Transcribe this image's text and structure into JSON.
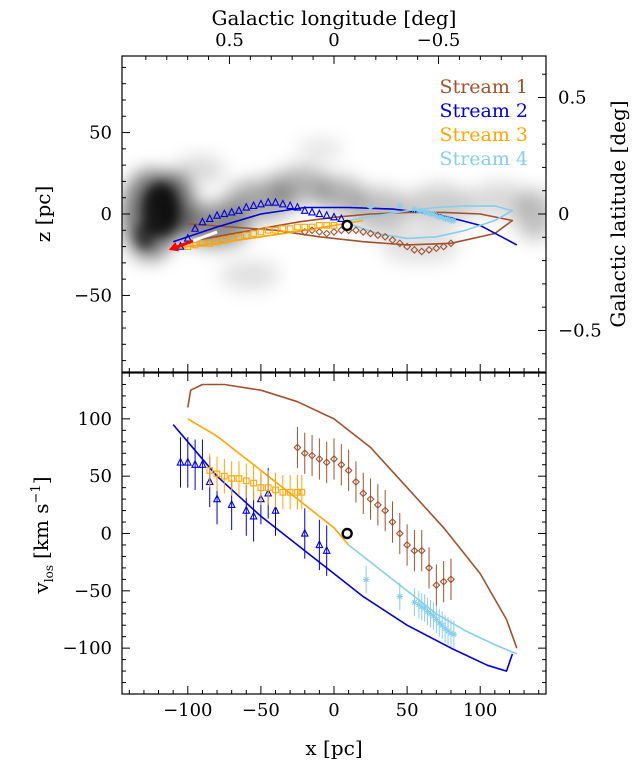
{
  "chart_data": [
    {
      "panel": "top",
      "type": "scatter",
      "xlabel": "x [pc]",
      "ylabel": "z [pc]",
      "top_xlabel": "Galactic longitude [deg]",
      "right_ylabel": "Galactic latitude [deg]",
      "xlim": [
        -145,
        145
      ],
      "ylim": [
        -97,
        97
      ],
      "x_ticks": [
        -100,
        -50,
        0,
        50,
        100
      ],
      "y_ticks": [
        -50,
        0,
        50
      ],
      "top_tick_labels": [
        "0.5",
        "0",
        "−0.5"
      ],
      "top_tick_values": [
        0.5,
        0.0,
        -0.5
      ],
      "right_tick_labels": [
        "0.5",
        "0",
        "−0.5"
      ],
      "right_tick_values": [
        0.5,
        0.0,
        -0.5
      ],
      "background": "grayscale gas density map",
      "legend": [
        {
          "label": "Stream 1",
          "color": "#a0522d"
        },
        {
          "label": "Stream 2",
          "color": "#0000dd"
        },
        {
          "label": "Stream 3",
          "color": "#ffa500"
        },
        {
          "label": "Stream 4",
          "color": "#87ceeb"
        }
      ],
      "legend_position": "top-right",
      "sun_marker": {
        "x": 9,
        "z": -7
      },
      "arrow": {
        "from": [
          -80,
          -11
        ],
        "to": [
          -113,
          -22
        ],
        "colors": [
          "#ffffff",
          "#ff0000"
        ]
      },
      "orbits": [
        {
          "name": "Stream 1",
          "color": "#a0522d",
          "x": [
            -100,
            -75,
            -50,
            -25,
            0,
            25,
            50,
            75,
            100,
            122,
            110,
            80,
            50,
            20,
            -10,
            -40,
            -70,
            -100
          ],
          "z": [
            -17,
            -13,
            -9,
            -5,
            -2,
            0,
            1,
            1,
            0,
            -4,
            -12,
            -18,
            -19,
            -17,
            -14,
            -10,
            -8,
            -6
          ]
        },
        {
          "name": "Stream 2",
          "color": "#0000dd",
          "x": [
            -110,
            -80,
            -50,
            -20,
            10,
            40,
            70,
            100,
            125
          ],
          "z": [
            -17,
            -8,
            0,
            4,
            4,
            3,
            0,
            -7,
            -19
          ]
        },
        {
          "name": "Stream 3",
          "color": "#ffa500",
          "x": [
            -110,
            -80,
            -50,
            -20,
            0,
            20
          ],
          "z": [
            -21,
            -18,
            -14,
            -10,
            -7,
            -4
          ]
        },
        {
          "name": "Stream 4",
          "color": "#87ceeb",
          "x": [
            10,
            30,
            50,
            70,
            90,
            110,
            122,
            110,
            90,
            70,
            50,
            30,
            10
          ],
          "z": [
            -4,
            -1,
            2,
            4,
            5,
            5,
            2,
            -4,
            -10,
            -14,
            -15,
            -12,
            -6
          ]
        }
      ],
      "series": [
        {
          "name": "Stream 1",
          "marker": "diamond",
          "color": "#a0522d",
          "x": [
            -20,
            -15,
            -10,
            -5,
            0,
            5,
            10,
            15,
            20,
            25,
            30,
            35,
            40,
            45,
            50,
            55,
            60,
            65,
            70,
            75,
            80
          ],
          "z": [
            -11,
            -10,
            -11,
            -12,
            -11,
            -10,
            -10,
            -10,
            -11,
            -12,
            -13,
            -14,
            -16,
            -18,
            -20,
            -22,
            -23,
            -22,
            -21,
            -20,
            -18
          ]
        },
        {
          "name": "Stream 2",
          "marker": "triangle",
          "color": "#0000dd",
          "x": [
            -105,
            -100,
            -95,
            -90,
            -85,
            -80,
            -75,
            -70,
            -65,
            -60,
            -55,
            -50,
            -45,
            -40,
            -35,
            -30,
            -25,
            -20,
            -15,
            -10,
            -5,
            0,
            5
          ],
          "z": [
            -20,
            -15,
            -9,
            -5,
            -3,
            -1,
            0,
            1,
            2,
            4,
            5,
            6,
            7,
            7,
            6,
            5,
            4,
            2,
            1,
            0,
            -1,
            -2,
            -3
          ]
        },
        {
          "name": "Stream 3",
          "marker": "square",
          "color": "#ffa500",
          "x": [
            -100,
            -95,
            -90,
            -85,
            -80,
            -75,
            -70,
            -65,
            -60,
            -55,
            -50,
            -45,
            -40,
            -35,
            -30,
            -25,
            -20,
            -15,
            -10,
            -5,
            0
          ],
          "z": [
            -20,
            -19,
            -18,
            -18,
            -17,
            -16,
            -15,
            -14,
            -13,
            -12,
            -11,
            -10,
            -10,
            -9,
            -9,
            -8,
            -8,
            -8,
            -7,
            -7,
            -7
          ]
        },
        {
          "name": "Stream 4",
          "marker": "asterisk",
          "color": "#87ceeb",
          "x": [
            25,
            45,
            55,
            58,
            60,
            62,
            64,
            66,
            68,
            70,
            72,
            74,
            76,
            78,
            80,
            82
          ],
          "z": [
            4,
            5,
            3,
            2,
            2,
            1,
            1,
            0,
            0,
            -1,
            -2,
            -2,
            -3,
            -3,
            -4,
            -4
          ]
        }
      ]
    },
    {
      "panel": "bottom",
      "type": "scatter",
      "xlabel": "x [pc]",
      "ylabel": "v_los [km s^-1]",
      "ylabel_main": "v",
      "ylabel_sub": "los",
      "ylabel_unit": "[km s",
      "ylabel_exp": "−1",
      "ylabel_close": "]",
      "xlim": [
        -145,
        145
      ],
      "ylim": [
        -140,
        140
      ],
      "x_ticks": [
        -100,
        -50,
        0,
        50,
        100
      ],
      "x_tick_labels": [
        "−100",
        "−50",
        "0",
        "50",
        "100"
      ],
      "y_ticks": [
        -100,
        -50,
        0,
        50,
        100
      ],
      "y_tick_labels": [
        "−100",
        "−50",
        "0",
        "50",
        "100"
      ],
      "sun_marker": {
        "x": 9,
        "v": 0
      },
      "orbits": [
        {
          "name": "Stream 1",
          "color": "#a0522d",
          "x": [
            -100,
            -98,
            -90,
            -75,
            -50,
            -25,
            0,
            25,
            50,
            75,
            100,
            118,
            125
          ],
          "v": [
            110,
            125,
            130,
            130,
            125,
            115,
            100,
            75,
            40,
            5,
            -35,
            -75,
            -100
          ]
        },
        {
          "name": "Stream 2",
          "color": "#0000dd",
          "x": [
            -110,
            -100,
            -80,
            -50,
            -20,
            0,
            20,
            50,
            80,
            105,
            118,
            122
          ],
          "v": [
            95,
            80,
            50,
            15,
            -15,
            -35,
            -55,
            -80,
            -100,
            -115,
            -120,
            -105
          ]
        },
        {
          "name": "Stream 3",
          "color": "#ffa500",
          "x": [
            -100,
            -80,
            -60,
            -40,
            -20,
            0,
            10
          ],
          "v": [
            100,
            85,
            65,
            45,
            25,
            5,
            -10
          ]
        },
        {
          "name": "Stream 4",
          "color": "#87ceeb",
          "x": [
            10,
            30,
            50,
            70,
            90,
            110,
            125
          ],
          "v": [
            -10,
            -30,
            -50,
            -70,
            -85,
            -97,
            -105
          ]
        }
      ],
      "series": [
        {
          "name": "Stream 1",
          "marker": "diamond",
          "color": "#a0522d",
          "x": [
            -25,
            -20,
            -15,
            -10,
            -5,
            0,
            5,
            10,
            15,
            20,
            25,
            30,
            35,
            40,
            45,
            50,
            55,
            60,
            65,
            70,
            75,
            80
          ],
          "v": [
            75,
            70,
            68,
            65,
            62,
            65,
            60,
            55,
            45,
            35,
            30,
            25,
            20,
            10,
            0,
            -10,
            -15,
            -15,
            -30,
            -45,
            -42,
            -40
          ],
          "err": 18
        },
        {
          "name": "Stream 2",
          "marker": "triangle",
          "color": "#0000dd",
          "x": [
            -105,
            -100,
            -95,
            -90,
            -85,
            -80,
            -70,
            -60,
            -55,
            -50,
            -45,
            -40,
            -20,
            -10,
            -5
          ],
          "v": [
            62,
            62,
            60,
            60,
            45,
            30,
            25,
            20,
            15,
            30,
            35,
            20,
            0,
            -10,
            -15
          ],
          "err": 22
        },
        {
          "name": "Stream 3",
          "marker": "square",
          "color": "#ffa500",
          "x": [
            -85,
            -80,
            -75,
            -70,
            -65,
            -60,
            -55,
            -50,
            -45,
            -40,
            -35,
            -30,
            -25,
            -22
          ],
          "v": [
            55,
            52,
            50,
            48,
            48,
            46,
            44,
            40,
            40,
            38,
            36,
            36,
            36,
            36
          ],
          "err": 15
        },
        {
          "name": "Stream 4",
          "marker": "asterisk",
          "color": "#87ceeb",
          "x": [
            22,
            45,
            55,
            58,
            60,
            62,
            64,
            66,
            68,
            70,
            72,
            74,
            76,
            78,
            80,
            82
          ],
          "v": [
            -40,
            -55,
            -60,
            -62,
            -64,
            -65,
            -68,
            -70,
            -72,
            -75,
            -78,
            -80,
            -83,
            -85,
            -87,
            -88
          ],
          "err": 12
        }
      ]
    }
  ]
}
